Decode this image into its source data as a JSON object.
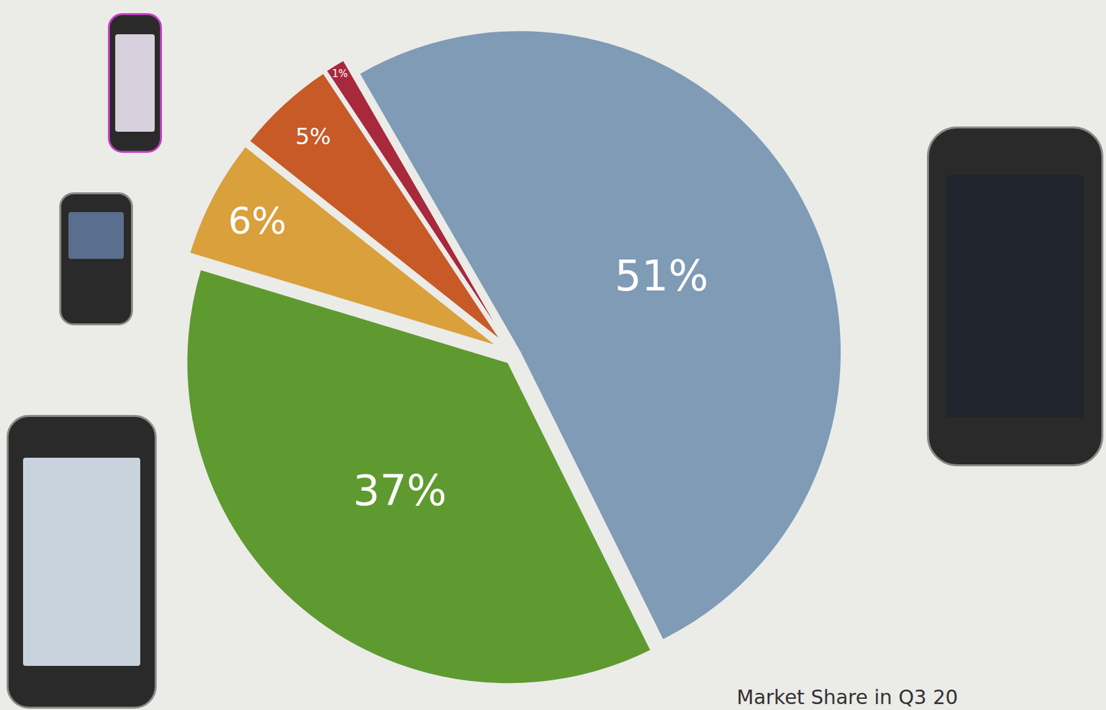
{
  "chart_data": {
    "type": "pie",
    "values": [
      51,
      37,
      6,
      5,
      1
    ],
    "value_labels": [
      "51%",
      "37%",
      "6%",
      "5%",
      "1%"
    ],
    "colors": [
      "#7f9bb5",
      "#5f9a30",
      "#d9a03c",
      "#c85a28",
      "#a8283c"
    ],
    "data_labels": true,
    "annotations": [
      "Market Share in Q3 20"
    ]
  }
}
